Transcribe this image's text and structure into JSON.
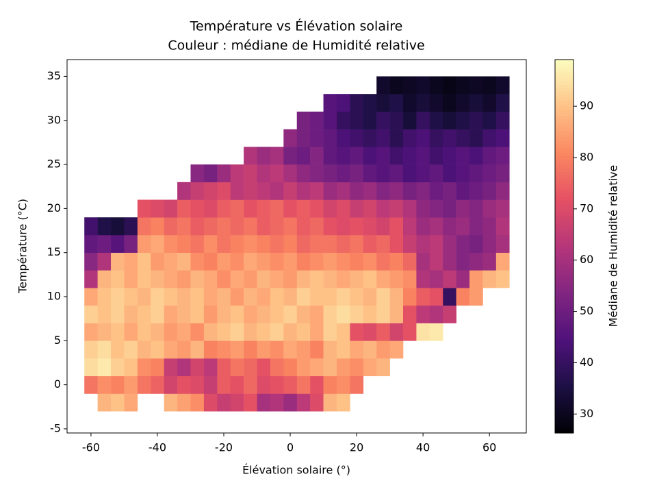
{
  "chart_data": {
    "type": "hexbin",
    "title": "Température vs Élévation solaire",
    "subtitle": "Couleur : médiane de Humidité relative",
    "x_label": "Élévation solaire (°)",
    "y_label": "Température (°C)",
    "colorbar_label": "Médiane de Humidité relative",
    "colormap": "magma",
    "xlim": [
      -67.2,
      71.1
    ],
    "ylim": [
      -5.47,
      36.9
    ],
    "xticks": [
      -60,
      -40,
      -20,
      0,
      20,
      40,
      60
    ],
    "yticks": [
      -5,
      0,
      5,
      10,
      15,
      20,
      25,
      30,
      35
    ],
    "clim": [
      26.3,
      99.1
    ],
    "cticks": [
      30,
      40,
      50,
      60,
      70,
      80,
      90
    ],
    "x": [
      -60,
      -56,
      -52,
      -48,
      -44,
      -40,
      -36,
      -32,
      -28,
      -24,
      -20,
      -16,
      -12,
      -8,
      -4,
      0,
      4,
      8,
      12,
      16,
      20,
      24,
      28,
      32,
      36,
      40,
      44,
      48,
      52,
      56,
      60,
      64
    ],
    "y": [
      -2,
      0,
      2,
      4,
      6,
      8,
      10,
      12,
      14,
      16,
      18,
      20,
      22,
      24,
      26,
      28,
      30,
      32,
      34
    ],
    "values": [
      [
        null,
        88,
        90,
        86,
        null,
        null,
        88,
        85,
        82,
        70,
        66,
        68,
        72,
        60,
        62,
        58,
        64,
        70,
        88,
        90,
        null,
        null,
        null,
        null,
        null,
        null,
        null,
        null,
        null,
        null,
        null,
        null
      ],
      [
        78,
        82,
        80,
        84,
        78,
        75,
        68,
        72,
        70,
        66,
        74,
        72,
        76,
        70,
        72,
        74,
        78,
        72,
        80,
        82,
        78,
        null,
        null,
        null,
        null,
        null,
        null,
        null,
        null,
        null,
        null,
        null
      ],
      [
        94,
        96,
        92,
        90,
        82,
        80,
        66,
        62,
        68,
        64,
        74,
        78,
        76,
        72,
        78,
        80,
        84,
        86,
        88,
        84,
        82,
        86,
        88,
        null,
        null,
        null,
        null,
        null,
        null,
        null,
        null,
        null
      ],
      [
        92,
        94,
        90,
        92,
        88,
        90,
        86,
        84,
        88,
        80,
        82,
        84,
        80,
        84,
        82,
        86,
        84,
        80,
        88,
        90,
        86,
        88,
        84,
        86,
        null,
        null,
        null,
        null,
        null,
        null,
        null,
        null
      ],
      [
        86,
        88,
        90,
        86,
        90,
        88,
        84,
        86,
        82,
        88,
        90,
        92,
        88,
        90,
        92,
        88,
        90,
        86,
        92,
        90,
        72,
        70,
        74,
        68,
        72,
        95,
        96,
        null,
        null,
        null,
        null,
        null
      ],
      [
        92,
        90,
        92,
        88,
        90,
        92,
        86,
        88,
        90,
        84,
        88,
        90,
        86,
        88,
        90,
        92,
        88,
        86,
        92,
        94,
        92,
        90,
        92,
        88,
        72,
        64,
        62,
        66,
        null,
        null,
        null,
        null
      ],
      [
        86,
        90,
        92,
        90,
        88,
        92,
        90,
        88,
        90,
        86,
        88,
        84,
        88,
        86,
        90,
        88,
        92,
        90,
        90,
        92,
        90,
        88,
        92,
        88,
        80,
        74,
        72,
        40,
        80,
        84,
        null,
        null
      ],
      [
        62,
        88,
        90,
        86,
        90,
        88,
        86,
        84,
        88,
        86,
        82,
        86,
        84,
        88,
        86,
        84,
        88,
        90,
        88,
        86,
        88,
        90,
        86,
        84,
        82,
        62,
        60,
        64,
        58,
        84,
        88,
        90
      ],
      [
        55,
        62,
        88,
        86,
        90,
        84,
        86,
        88,
        82,
        80,
        84,
        82,
        86,
        84,
        82,
        84,
        80,
        82,
        84,
        82,
        80,
        82,
        78,
        80,
        76,
        60,
        64,
        58,
        54,
        56,
        58,
        86
      ],
      [
        48,
        50,
        46,
        52,
        84,
        86,
        82,
        80,
        78,
        82,
        78,
        80,
        82,
        80,
        78,
        80,
        76,
        78,
        78,
        76,
        78,
        74,
        76,
        72,
        66,
        62,
        64,
        58,
        54,
        52,
        56,
        60
      ],
      [
        42,
        36,
        34,
        38,
        78,
        80,
        76,
        78,
        74,
        76,
        78,
        76,
        78,
        74,
        76,
        78,
        74,
        76,
        72,
        70,
        72,
        70,
        68,
        72,
        64,
        58,
        60,
        56,
        58,
        54,
        56,
        62
      ],
      [
        null,
        null,
        null,
        null,
        72,
        70,
        68,
        74,
        72,
        70,
        74,
        76,
        72,
        74,
        76,
        72,
        74,
        72,
        68,
        70,
        66,
        68,
        64,
        66,
        62,
        56,
        54,
        52,
        56,
        54,
        58,
        60
      ],
      [
        null,
        null,
        null,
        null,
        null,
        null,
        null,
        62,
        66,
        68,
        70,
        64,
        66,
        64,
        62,
        66,
        62,
        64,
        58,
        60,
        56,
        58,
        54,
        56,
        52,
        54,
        50,
        52,
        48,
        50,
        52,
        56
      ],
      [
        null,
        null,
        null,
        null,
        null,
        null,
        null,
        null,
        55,
        52,
        58,
        64,
        66,
        62,
        64,
        60,
        56,
        54,
        52,
        50,
        52,
        48,
        46,
        48,
        44,
        46,
        48,
        44,
        46,
        48,
        50,
        52
      ],
      [
        null,
        null,
        null,
        null,
        null,
        null,
        null,
        null,
        null,
        null,
        null,
        null,
        62,
        58,
        60,
        52,
        50,
        54,
        48,
        46,
        48,
        44,
        46,
        42,
        44,
        46,
        42,
        44,
        46,
        44,
        48,
        50
      ],
      [
        null,
        null,
        null,
        null,
        null,
        null,
        null,
        null,
        null,
        null,
        null,
        null,
        null,
        null,
        null,
        56,
        52,
        50,
        48,
        44,
        42,
        40,
        42,
        38,
        42,
        44,
        40,
        42,
        40,
        38,
        42,
        44
      ],
      [
        null,
        null,
        null,
        null,
        null,
        null,
        null,
        null,
        null,
        null,
        null,
        null,
        null,
        null,
        null,
        null,
        52,
        50,
        46,
        40,
        38,
        36,
        40,
        38,
        34,
        40,
        36,
        34,
        36,
        38,
        36,
        40
      ],
      [
        null,
        null,
        null,
        null,
        null,
        null,
        null,
        null,
        null,
        null,
        null,
        null,
        null,
        null,
        null,
        null,
        null,
        null,
        46,
        44,
        38,
        36,
        34,
        36,
        32,
        34,
        32,
        30,
        32,
        34,
        32,
        36
      ],
      [
        null,
        null,
        null,
        null,
        null,
        null,
        null,
        null,
        null,
        null,
        null,
        null,
        null,
        null,
        null,
        null,
        null,
        null,
        null,
        null,
        null,
        null,
        32,
        30,
        31,
        32,
        30,
        29,
        30,
        31,
        30,
        32
      ]
    ]
  }
}
